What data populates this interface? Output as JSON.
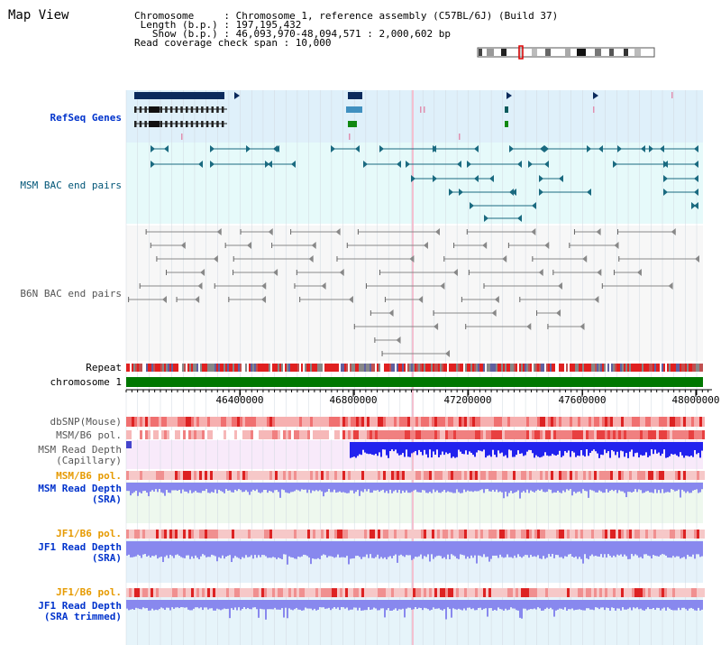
{
  "header": {
    "title": "Map View",
    "info_lines": [
      "Chromosome     : Chromosome 1, reference assembly (C57BL/6J) (Build 37)",
      " Length (b.p.) : 197,195,432",
      "   Show (b.p.) : 46,093,970-48,094,571 : 2,000,602 bp",
      "Read coverage check span : 10,000"
    ]
  },
  "tracks": {
    "refseq_label": "RefSeq Genes",
    "msm_bac_label": "MSM BAC end pairs",
    "b6n_bac_label": "B6N BAC end pairs",
    "repeat_label": "Repeat",
    "chromosome_label": "chromosome 1",
    "dbsnp_label": "dbSNP(Mouse)",
    "msm_b6_pol_label_1": "MSM/B6 pol.",
    "msm_read_depth_cap_1": "MSM Read Depth",
    "msm_read_depth_cap_2": "(Capillary)",
    "msm_b6_pol_label_2": "MSM/B6 pol.",
    "msm_read_depth_sra_1": "MSM Read Depth",
    "msm_read_depth_sra_2": "(SRA)",
    "jf1_b6_pol_label_1": "JF1/B6 pol.",
    "jf1_read_depth_sra_1": "JF1 Read Depth",
    "jf1_read_depth_sra_2": "(SRA)",
    "jf1_b6_pol_label_2": "JF1/B6 pol.",
    "jf1_read_depth_trim_1": "JF1 Read Depth",
    "jf1_read_depth_trim_2": "(SRA trimmed)"
  },
  "axis": {
    "tick_labels": [
      "46400000",
      "46800000",
      "47200000",
      "47600000",
      "48000000"
    ]
  },
  "colors": {
    "label_blue": "#0033cc",
    "label_teal": "#005577",
    "label_orange": "#e69a00",
    "refseq_bg": "#dff0fa",
    "msm_bac_bg": "#e6fafa",
    "chromosome_green": "#007700",
    "depth_blue": "#2222ee",
    "depth_light": "#8888ee",
    "snp_red": "#ee3333"
  }
}
